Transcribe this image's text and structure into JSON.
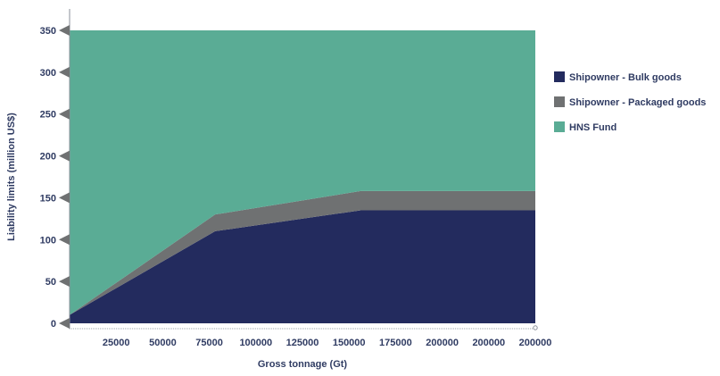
{
  "chart_data": {
    "type": "area",
    "stacked": true,
    "xlabel": "Gross tonnage (Gt)",
    "ylabel": "Liability limits (million US$)",
    "xlim": [
      0,
      200000
    ],
    "ylim": [
      0,
      350
    ],
    "x_tick_labels": [
      "25000",
      "50000",
      "75000",
      "100000",
      "125000",
      "150000",
      "175000",
      "200000",
      "200000",
      "200000"
    ],
    "y_tick_labels": [
      "0",
      "50",
      "100",
      "150",
      "200",
      "250",
      "300",
      "350"
    ],
    "y_ticks": [
      0,
      50,
      100,
      150,
      200,
      250,
      300,
      350
    ],
    "x": [
      0,
      62500,
      125000,
      200000
    ],
    "series": [
      {
        "name": "Shipowner - Bulk goods",
        "color": "#232b5e",
        "values": [
          10,
          110,
          135,
          135
        ]
      },
      {
        "name": "Shipowner - Packaged goods",
        "color": "#6f7172",
        "values": [
          0,
          20,
          23,
          23
        ]
      },
      {
        "name": "HNS Fund",
        "color": "#5aac95",
        "values": [
          340,
          220,
          192,
          192
        ]
      }
    ],
    "legend_position": "right",
    "grid": false
  }
}
